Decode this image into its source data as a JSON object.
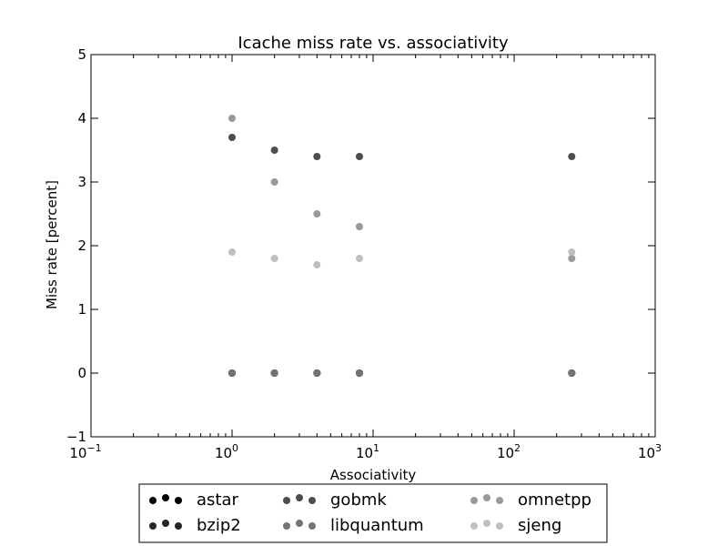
{
  "chart_data": {
    "type": "scatter",
    "title": "Icache miss rate vs. associativity",
    "xlabel": "Associativity",
    "ylabel": "Miss rate [percent]",
    "xscale": "log",
    "xlim": [
      0.1,
      1000
    ],
    "ylim": [
      -1,
      5
    ],
    "x_tick_labels": [
      {
        "base": "10",
        "exp": "−1"
      },
      {
        "base": "10",
        "exp": "0"
      },
      {
        "base": "10",
        "exp": "1"
      },
      {
        "base": "10",
        "exp": "2"
      },
      {
        "base": "10",
        "exp": "3"
      }
    ],
    "y_tick_labels": [
      "−1",
      "0",
      "1",
      "2",
      "3",
      "4",
      "5"
    ],
    "grid": false,
    "legend_position": "bottom-center, outside plot, 3 columns",
    "series": [
      {
        "name": "astar",
        "color": "#000000",
        "x": [
          1,
          2,
          4,
          8,
          256
        ],
        "y": [
          0,
          0,
          0,
          0,
          0
        ]
      },
      {
        "name": "bzip2",
        "color": "#262626",
        "x": [
          1,
          2,
          4,
          8,
          256
        ],
        "y": [
          0,
          0,
          0,
          0,
          0
        ]
      },
      {
        "name": "gobmk",
        "color": "#4d4d4d",
        "x": [
          1,
          2,
          4,
          8,
          256
        ],
        "y": [
          3.7,
          3.5,
          3.4,
          3.4,
          3.4
        ]
      },
      {
        "name": "libquantum",
        "color": "#737373",
        "x": [
          1,
          2,
          4,
          8,
          256
        ],
        "y": [
          0,
          0,
          0,
          0,
          0
        ]
      },
      {
        "name": "omnetpp",
        "color": "#999999",
        "x": [
          1,
          2,
          4,
          8,
          256
        ],
        "y": [
          4.0,
          3.0,
          2.5,
          2.3,
          1.8
        ]
      },
      {
        "name": "sjeng",
        "color": "#bfbfbf",
        "x": [
          1,
          2,
          4,
          8,
          256
        ],
        "y": [
          1.9,
          1.8,
          1.7,
          1.8,
          1.9
        ]
      }
    ]
  }
}
